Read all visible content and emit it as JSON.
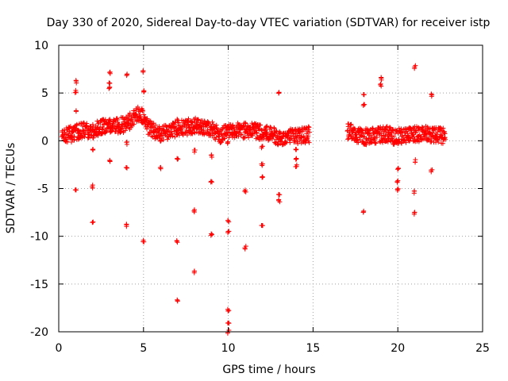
{
  "chart_data": {
    "type": "scatter",
    "title": "Day 330 of 2020, Sidereal Day-to-day VTEC variation (SDTVAR) for receiver istp",
    "xlabel": "GPS time / hours",
    "ylabel": "SDTVAR / TECUs",
    "xlim": [
      0,
      25
    ],
    "ylim": [
      -20,
      10
    ],
    "x_ticks": [
      "0",
      "5",
      "10",
      "15",
      "20",
      "25"
    ],
    "y_ticks": [
      "10",
      "5",
      "0",
      "-5",
      "-10",
      "-15",
      "-20"
    ],
    "grid": true,
    "marker": "+",
    "color": "#ff0000",
    "series": [
      {
        "name": "SDTVAR",
        "band": [
          [
            0.2,
            0.5
          ],
          [
            0.6,
            0.6
          ],
          [
            1.0,
            0.9
          ],
          [
            1.5,
            1.1
          ],
          [
            2.0,
            1.0
          ],
          [
            2.5,
            1.4
          ],
          [
            3.0,
            1.6
          ],
          [
            3.5,
            1.5
          ],
          [
            4.0,
            1.8
          ],
          [
            4.5,
            2.4
          ],
          [
            4.8,
            3.0
          ],
          [
            5.2,
            1.6
          ],
          [
            5.6,
            1.0
          ],
          [
            6.0,
            0.8
          ],
          [
            6.5,
            1.0
          ],
          [
            7.0,
            1.3
          ],
          [
            7.5,
            1.4
          ],
          [
            8.0,
            1.6
          ],
          [
            8.5,
            1.5
          ],
          [
            9.0,
            1.2
          ],
          [
            9.5,
            0.6
          ],
          [
            10.0,
            0.9
          ],
          [
            10.5,
            1.2
          ],
          [
            11.0,
            1.1
          ],
          [
            11.5,
            1.0
          ],
          [
            12.0,
            0.8
          ],
          [
            12.5,
            0.6
          ],
          [
            13.0,
            0.4
          ],
          [
            13.5,
            0.4
          ],
          [
            14.0,
            0.5
          ],
          [
            14.6,
            0.6
          ],
          [
            17.2,
            1.0
          ],
          [
            17.8,
            0.5
          ],
          [
            18.3,
            0.4
          ],
          [
            18.8,
            0.6
          ],
          [
            19.3,
            0.7
          ],
          [
            19.8,
            0.4
          ],
          [
            20.3,
            0.6
          ],
          [
            20.8,
            0.7
          ],
          [
            21.3,
            0.6
          ],
          [
            21.8,
            0.7
          ],
          [
            22.3,
            0.6
          ],
          [
            22.8,
            0.5
          ]
        ],
        "outliers": [
          [
            1.0,
            6.2
          ],
          [
            1.0,
            5.2
          ],
          [
            1.0,
            3.0
          ],
          [
            1.0,
            -5.2
          ],
          [
            2.0,
            -0.8
          ],
          [
            2.0,
            -4.8
          ],
          [
            2.0,
            -8.5
          ],
          [
            3.0,
            7.2
          ],
          [
            3.0,
            6.1
          ],
          [
            3.0,
            5.5
          ],
          [
            3.0,
            -2.1
          ],
          [
            4.0,
            7.0
          ],
          [
            4.0,
            -0.3
          ],
          [
            4.0,
            -2.9
          ],
          [
            4.0,
            -8.8
          ],
          [
            5.0,
            7.2
          ],
          [
            5.0,
            5.2
          ],
          [
            5.0,
            -10.5
          ],
          [
            6.0,
            -2.9
          ],
          [
            7.0,
            2.2
          ],
          [
            7.0,
            -2.0
          ],
          [
            7.0,
            -10.6
          ],
          [
            7.0,
            -16.7
          ],
          [
            8.0,
            -1.1
          ],
          [
            8.0,
            -7.3
          ],
          [
            8.0,
            -13.7
          ],
          [
            9.0,
            -1.6
          ],
          [
            9.0,
            -4.4
          ],
          [
            9.0,
            -9.8
          ],
          [
            10.0,
            -0.2
          ],
          [
            10.0,
            -8.5
          ],
          [
            10.0,
            -9.5
          ],
          [
            10.0,
            -17.8
          ],
          [
            10.0,
            -19.0
          ],
          [
            10.0,
            -20.0
          ],
          [
            11.0,
            -5.2
          ],
          [
            11.0,
            -11.2
          ],
          [
            12.0,
            -0.7
          ],
          [
            12.0,
            -2.5
          ],
          [
            12.0,
            -3.7
          ],
          [
            12.0,
            -8.9
          ],
          [
            13.0,
            5.0
          ],
          [
            13.0,
            -5.6
          ],
          [
            13.0,
            -6.3
          ],
          [
            14.0,
            -0.9
          ],
          [
            14.0,
            -2.0
          ],
          [
            14.0,
            -2.6
          ],
          [
            18.0,
            4.8
          ],
          [
            18.0,
            3.7
          ],
          [
            18.0,
            -7.5
          ],
          [
            19.0,
            6.5
          ],
          [
            19.0,
            5.8
          ],
          [
            20.0,
            -3.0
          ],
          [
            20.0,
            -4.2
          ],
          [
            20.0,
            -5.1
          ],
          [
            21.0,
            7.7
          ],
          [
            21.0,
            -2.1
          ],
          [
            21.0,
            -5.4
          ],
          [
            21.0,
            -7.6
          ],
          [
            22.0,
            4.8
          ],
          [
            22.0,
            -3.1
          ]
        ]
      }
    ]
  }
}
